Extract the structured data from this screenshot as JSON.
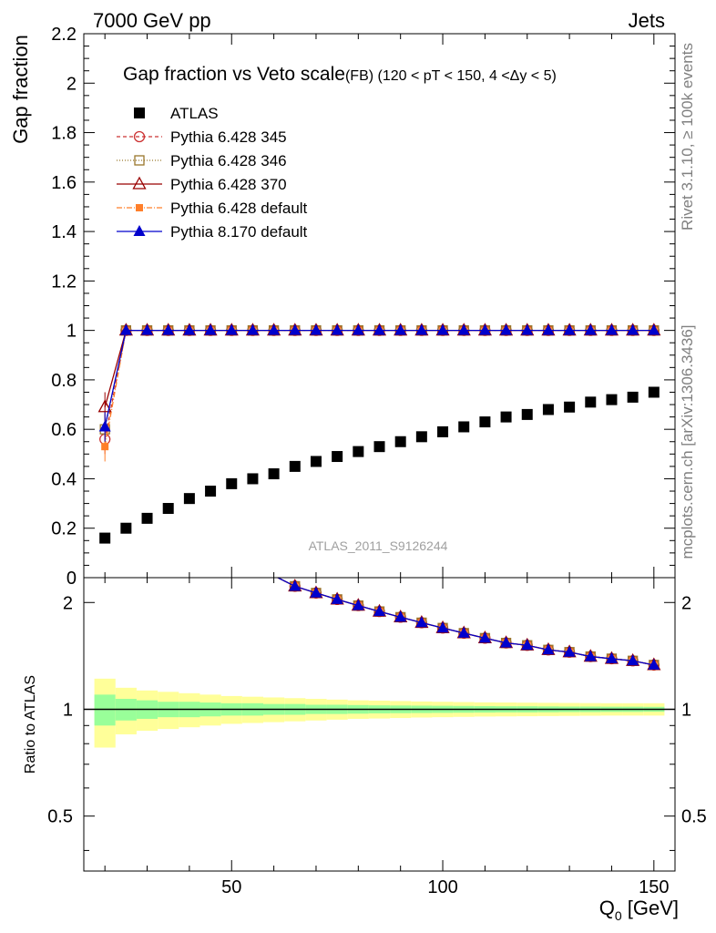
{
  "header": {
    "left": "7000 GeV pp",
    "right": "Jets"
  },
  "side": {
    "rivet": "Rivet 3.1.10, ≥ 100k events",
    "mcplots": "mcplots.cern.ch [arXiv:1306.3436]"
  },
  "watermark": "ATLAS_2011_S9126244",
  "colors": {
    "band_inner": "#99ff99",
    "band_outer": "#ffff99",
    "atlas": "#000000",
    "p345": "#cc3333",
    "p346": "#99772b",
    "p370": "#990000",
    "p6def": "#ff7f2a",
    "p8def": "#0000cc"
  },
  "chart_data": {
    "type": "line",
    "title_main": "Gap fraction vs Veto scale",
    "title_sub": "(FB) (120 < pT < 150, 4 <Δy < 5)",
    "xlabel": "Q",
    "xlabel_sub": "0",
    "xlabel_unit": " [GeV]",
    "ylabel": "Gap fraction",
    "ratio_ylabel": "Ratio to ATLAS",
    "xlim": [
      15,
      155
    ],
    "ylim": [
      0,
      2.2
    ],
    "ratio_ylim": [
      0.35,
      2.35
    ],
    "ratio_scale": "log",
    "xticks": [
      50,
      100,
      150
    ],
    "xtick_labels": [
      "50",
      "100",
      "150"
    ],
    "yticks": [
      0,
      0.2,
      0.4,
      0.6,
      0.8,
      1,
      1.2,
      1.4,
      1.6,
      1.8,
      2,
      2.2
    ],
    "ytick_labels": [
      "0",
      "0.2",
      "0.4",
      "0.6",
      "0.8",
      "1",
      "1.2",
      "1.4",
      "1.6",
      "1.8",
      "2",
      "2.2"
    ],
    "ratio_yticks": [
      0.5,
      1,
      2
    ],
    "ratio_ytick_labels": [
      "0.5",
      "1",
      "2"
    ],
    "x": [
      20,
      25,
      30,
      35,
      40,
      45,
      50,
      55,
      60,
      65,
      70,
      75,
      80,
      85,
      90,
      95,
      100,
      105,
      110,
      115,
      120,
      125,
      130,
      135,
      140,
      145,
      150
    ],
    "series": [
      {
        "name": "ATLAS",
        "key": "atlas",
        "marker": "square-filled",
        "values": [
          0.16,
          0.2,
          0.24,
          0.28,
          0.32,
          0.35,
          0.38,
          0.4,
          0.42,
          0.45,
          0.47,
          0.49,
          0.51,
          0.53,
          0.55,
          0.57,
          0.59,
          0.61,
          0.63,
          0.65,
          0.66,
          0.68,
          0.69,
          0.71,
          0.72,
          0.73,
          0.75
        ]
      },
      {
        "name": "Pythia 6.428 345",
        "key": "p345",
        "marker": "circle-open",
        "dash": "4,3",
        "values": [
          0.56,
          1,
          1,
          1,
          1,
          1,
          1,
          1,
          1,
          1,
          1,
          1,
          1,
          1,
          1,
          1,
          1,
          1,
          1,
          1,
          1,
          1,
          1,
          1,
          1,
          1,
          1
        ]
      },
      {
        "name": "Pythia 6.428 346",
        "key": "p346",
        "marker": "square-open",
        "dash": "1,2",
        "values": [
          0.6,
          1,
          1,
          1,
          1,
          1,
          1,
          1,
          1,
          1,
          1,
          1,
          1,
          1,
          1,
          1,
          1,
          1,
          1,
          1,
          1,
          1,
          1,
          1,
          1,
          1,
          1
        ]
      },
      {
        "name": "Pythia 6.428 370",
        "key": "p370",
        "marker": "triangle-open",
        "dash": "",
        "values": [
          0.69,
          1,
          1,
          1,
          1,
          1,
          1,
          1,
          1,
          1,
          1,
          1,
          1,
          1,
          1,
          1,
          1,
          1,
          1,
          1,
          1,
          1,
          1,
          1,
          1,
          1,
          1
        ]
      },
      {
        "name": "Pythia 6.428 default",
        "key": "p6def",
        "marker": "square-filled-small",
        "dash": "6,2,1,2",
        "values": [
          0.53,
          1,
          1,
          1,
          1,
          1,
          1,
          1,
          1,
          1,
          1,
          1,
          1,
          1,
          1,
          1,
          1,
          1,
          1,
          1,
          1,
          1,
          1,
          1,
          1,
          1,
          1
        ]
      },
      {
        "name": "Pythia 8.170 default",
        "key": "p8def",
        "marker": "triangle-filled",
        "dash": "",
        "values": [
          0.61,
          1,
          1,
          1,
          1,
          1,
          1,
          1,
          1,
          1,
          1,
          1,
          1,
          1,
          1,
          1,
          1,
          1,
          1,
          1,
          1,
          1,
          1,
          1,
          1,
          1,
          1
        ]
      }
    ],
    "atlas_band_inner": [
      0.1,
      0.07,
      0.06,
      0.05,
      0.05,
      0.045,
      0.04,
      0.04,
      0.035,
      0.035,
      0.03,
      0.03,
      0.028,
      0.026,
      0.025,
      0.024,
      0.023,
      0.022,
      0.021,
      0.02,
      0.02,
      0.019,
      0.018,
      0.018,
      0.017,
      0.017,
      0.016
    ],
    "atlas_band_outer": [
      0.22,
      0.15,
      0.13,
      0.12,
      0.11,
      0.1,
      0.09,
      0.085,
      0.08,
      0.075,
      0.07,
      0.065,
      0.06,
      0.058,
      0.055,
      0.052,
      0.05,
      0.048,
      0.046,
      0.045,
      0.044,
      0.043,
      0.042,
      0.041,
      0.04,
      0.04,
      0.04
    ]
  }
}
